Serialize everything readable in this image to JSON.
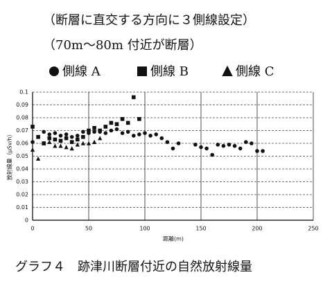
{
  "chart_data": {
    "type": "scatter",
    "title_lines": [
      "（断層に直交する方向に３側線設定）",
      "（70m〜80m 付近が断層）"
    ],
    "caption": "グラフ４　跡津川断層付近の自然放射線量",
    "x_label": "距離(m)",
    "y_label": "放射線量（μSv/h）",
    "xlim": [
      0,
      250
    ],
    "ylim": [
      0,
      0.1
    ],
    "xticks": [
      0,
      50,
      100,
      150,
      200,
      250
    ],
    "yticks": [
      0,
      0.01,
      0.02,
      0.03,
      0.04,
      0.05,
      0.06,
      0.07,
      0.08,
      0.09,
      0.1
    ],
    "grid": true,
    "series": [
      {
        "name": "側線 A",
        "marker": "circle",
        "color": "#111",
        "x": [
          0,
          10,
          15,
          20,
          25,
          30,
          35,
          40,
          45,
          50,
          55,
          60,
          65,
          70,
          75,
          80,
          85,
          90,
          95,
          100,
          105,
          110,
          115,
          120,
          125,
          130,
          145,
          150,
          155,
          160,
          165,
          170,
          175,
          180,
          185,
          190,
          195,
          200,
          205
        ],
        "y": [
          0.061,
          0.069,
          0.067,
          0.068,
          0.066,
          0.067,
          0.065,
          0.066,
          0.069,
          0.068,
          0.069,
          0.069,
          0.068,
          0.07,
          0.071,
          0.068,
          0.069,
          0.066,
          0.067,
          0.068,
          0.066,
          0.067,
          0.064,
          0.061,
          0.056,
          0.06,
          0.059,
          0.057,
          0.056,
          0.051,
          0.059,
          0.058,
          0.059,
          0.058,
          0.056,
          0.061,
          0.06,
          0.054,
          0.054
        ]
      },
      {
        "name": "側線 B",
        "marker": "square",
        "color": "#111",
        "x": [
          0,
          5,
          10,
          15,
          20,
          25,
          30,
          35,
          40,
          45,
          50,
          55,
          60,
          65,
          70,
          75,
          80,
          85,
          90,
          95
        ],
        "y": [
          0.073,
          0.065,
          0.06,
          0.064,
          0.063,
          0.062,
          0.064,
          0.061,
          0.063,
          0.065,
          0.07,
          0.072,
          0.07,
          0.073,
          0.076,
          0.075,
          0.079,
          0.076,
          0.096,
          0.079
        ]
      },
      {
        "name": "側線 C",
        "marker": "triangle",
        "color": "#111",
        "x": [
          0,
          5,
          10,
          15,
          20,
          25,
          30,
          35,
          40,
          45,
          50,
          55,
          60
        ],
        "y": [
          0.055,
          0.048,
          0.06,
          0.061,
          0.058,
          0.058,
          0.057,
          0.056,
          0.059,
          0.06,
          0.06,
          0.061,
          0.064
        ]
      }
    ]
  }
}
